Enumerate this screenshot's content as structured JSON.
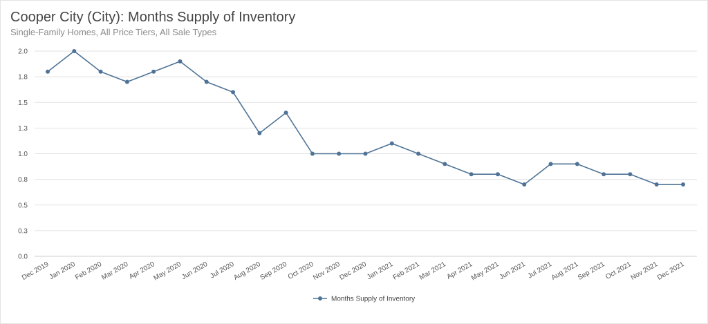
{
  "page": {
    "title": "Cooper City (City): Months Supply of Inventory",
    "subtitle": "Single-Family Homes, All Price Tiers, All Sale Types"
  },
  "colors": {
    "series": "#4f7396",
    "grid": "#e2e2e2",
    "axis": "#cfcfcf"
  },
  "chart_data": {
    "type": "line",
    "title": "Cooper City (City): Months Supply of Inventory",
    "subtitle": "Single-Family Homes, All Price Tiers, All Sale Types",
    "xlabel": "",
    "ylabel": "",
    "ylim": [
      0,
      2.0
    ],
    "yticks": [
      0.0,
      0.25,
      0.5,
      0.75,
      1.0,
      1.25,
      1.5,
      1.75,
      2.0
    ],
    "ytick_labels": [
      "0.0",
      "0.3",
      "0.5",
      "0.8",
      "1.0",
      "1.3",
      "1.5",
      "1.8",
      "2.0"
    ],
    "grid": true,
    "legend_position": "bottom-center",
    "categories": [
      "Dec 2019",
      "Jan 2020",
      "Feb 2020",
      "Mar 2020",
      "Apr 2020",
      "May 2020",
      "Jun 2020",
      "Jul 2020",
      "Aug 2020",
      "Sep 2020",
      "Oct 2020",
      "Nov 2020",
      "Dec 2020",
      "Jan 2021",
      "Feb 2021",
      "Mar 2021",
      "Apr 2021",
      "May 2021",
      "Jun 2021",
      "Jul 2021",
      "Aug 2021",
      "Sep 2021",
      "Oct 2021",
      "Nov 2021",
      "Dec 2021"
    ],
    "series": [
      {
        "name": "Months Supply of Inventory",
        "values": [
          1.8,
          2.0,
          1.8,
          1.7,
          1.8,
          1.9,
          1.7,
          1.6,
          1.2,
          1.4,
          1.0,
          1.0,
          1.0,
          1.1,
          1.0,
          0.9,
          0.8,
          0.8,
          0.7,
          0.9,
          0.9,
          0.8,
          0.8,
          0.7,
          0.7
        ]
      }
    ]
  }
}
